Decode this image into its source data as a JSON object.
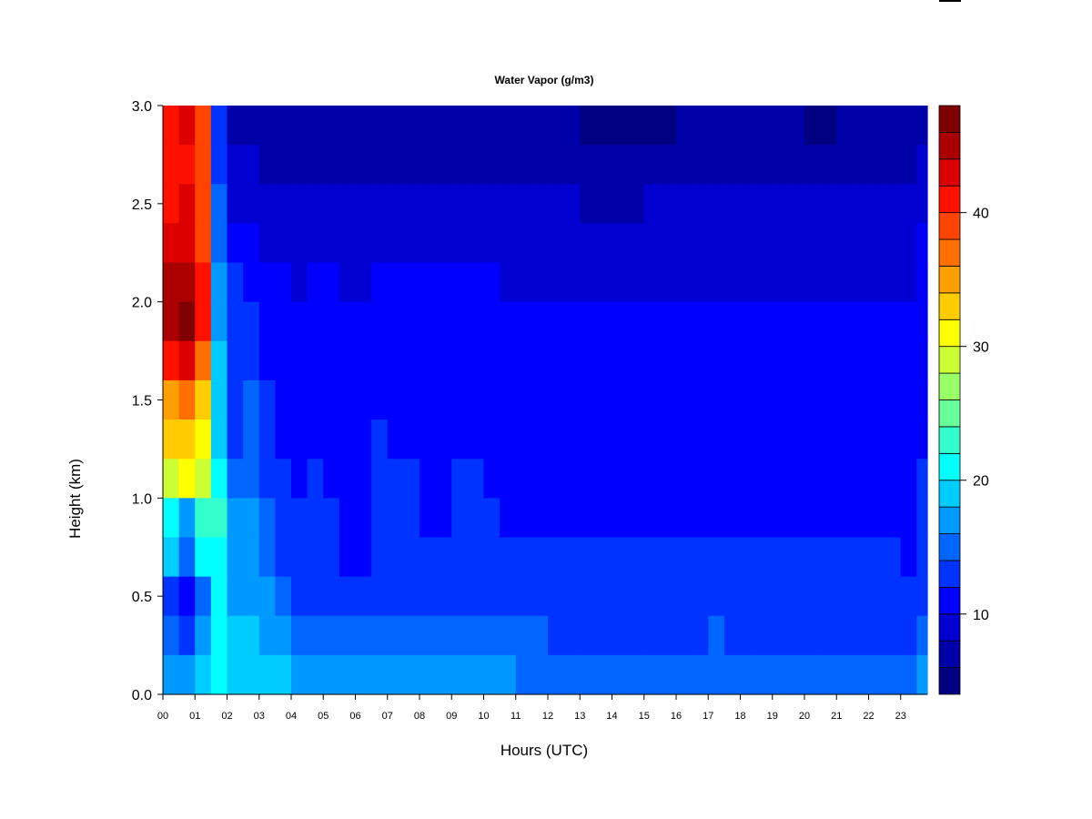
{
  "chart_data": {
    "type": "heatmap",
    "title": "Water Vapor (g/m3)",
    "xlabel": "Hours (UTC)",
    "ylabel": "Height (km)",
    "xlim": [
      0,
      23.83
    ],
    "ylim": [
      0,
      3.0
    ],
    "x_ticks": [
      "00",
      "01",
      "02",
      "03",
      "04",
      "05",
      "06",
      "07",
      "08",
      "09",
      "10",
      "11",
      "12",
      "13",
      "14",
      "15",
      "16",
      "17",
      "18",
      "19",
      "20",
      "21",
      "22",
      "23"
    ],
    "y_ticks": [
      "0.0",
      "0.5",
      "1.0",
      "1.5",
      "2.0",
      "2.5",
      "3.0"
    ],
    "x": [
      0.25,
      0.75,
      1.25,
      1.75,
      2.25,
      2.75,
      3.25,
      3.75,
      4.25,
      4.75,
      5.25,
      5.75,
      6.25,
      6.75,
      7.25,
      7.75,
      8.25,
      8.75,
      9.25,
      9.75,
      10.25,
      10.75,
      11.25,
      11.75,
      12.25,
      12.75,
      13.25,
      13.75,
      14.25,
      14.75,
      15.25,
      15.75,
      16.25,
      16.75,
      17.25,
      17.75,
      18.25,
      18.75,
      19.25,
      19.75,
      20.25,
      20.75,
      21.25,
      21.75,
      22.25,
      22.75,
      23.25,
      23.75
    ],
    "y": [
      2.9,
      2.7,
      2.5,
      2.3,
      2.1,
      1.9,
      1.7,
      1.5,
      1.3,
      1.1,
      0.9,
      0.7,
      0.5,
      0.3,
      0.1
    ],
    "z": [
      [
        40,
        42,
        38,
        12,
        7,
        7,
        7,
        6,
        6,
        6,
        6,
        6,
        6,
        6,
        6,
        6,
        6,
        6,
        6,
        6,
        6,
        6,
        6,
        6,
        6,
        6,
        5,
        5,
        5,
        5,
        5,
        5,
        6,
        6,
        6,
        6,
        6,
        6,
        6,
        6,
        5,
        5,
        6,
        6,
        6,
        6,
        6,
        6
      ],
      [
        40,
        41,
        38,
        13,
        8,
        8,
        7,
        7,
        7,
        7,
        7,
        7,
        7,
        7,
        7,
        7,
        7,
        7,
        7,
        7,
        7,
        7,
        7,
        7,
        7,
        7,
        6,
        6,
        6,
        6,
        6,
        6,
        7,
        7,
        7,
        7,
        7,
        7,
        7,
        7,
        7,
        7,
        7,
        7,
        7,
        7,
        7,
        8
      ],
      [
        41,
        42,
        38,
        14,
        9,
        8,
        8,
        8,
        8,
        8,
        8,
        8,
        8,
        8,
        8,
        8,
        8,
        8,
        8,
        8,
        8,
        8,
        8,
        8,
        8,
        8,
        7,
        7,
        7,
        7,
        8,
        8,
        8,
        8,
        8,
        8,
        8,
        8,
        8,
        8,
        8,
        8,
        8,
        8,
        8,
        8,
        8,
        9
      ],
      [
        42,
        43,
        39,
        15,
        11,
        10,
        9,
        9,
        9,
        9,
        9,
        9,
        9,
        9,
        9,
        9,
        9,
        9,
        9,
        9,
        9,
        9,
        9,
        9,
        9,
        9,
        9,
        9,
        9,
        9,
        9,
        9,
        9,
        9,
        9,
        9,
        9,
        9,
        9,
        9,
        9,
        9,
        9,
        9,
        9,
        9,
        9,
        10
      ],
      [
        44,
        45,
        40,
        16,
        12,
        11,
        10,
        10,
        9,
        10,
        10,
        9,
        9,
        10,
        10,
        10,
        10,
        10,
        10,
        10,
        10,
        9,
        9,
        9,
        9,
        9,
        9,
        9,
        9,
        9,
        9,
        9,
        9,
        9,
        9,
        9,
        9,
        9,
        9,
        9,
        9,
        9,
        9,
        9,
        9,
        9,
        9,
        10
      ],
      [
        45,
        46,
        40,
        17,
        12,
        12,
        10,
        10,
        10,
        10,
        10,
        10,
        10,
        10,
        10,
        10,
        10,
        10,
        10,
        10,
        10,
        10,
        10,
        10,
        10,
        10,
        10,
        10,
        10,
        10,
        10,
        10,
        10,
        10,
        10,
        10,
        10,
        10,
        10,
        10,
        10,
        10,
        10,
        10,
        10,
        10,
        10,
        11
      ],
      [
        40,
        42,
        36,
        18,
        13,
        13,
        11,
        10,
        10,
        10,
        10,
        10,
        10,
        11,
        11,
        10,
        10,
        10,
        10,
        10,
        10,
        10,
        10,
        10,
        10,
        10,
        10,
        10,
        10,
        10,
        10,
        10,
        10,
        10,
        10,
        10,
        10,
        11,
        11,
        11,
        11,
        11,
        11,
        10,
        11,
        11,
        10,
        11
      ],
      [
        34,
        36,
        32,
        18,
        13,
        14,
        12,
        11,
        11,
        11,
        11,
        10,
        11,
        11,
        11,
        11,
        11,
        11,
        11,
        11,
        11,
        10,
        10,
        10,
        10,
        10,
        10,
        10,
        10,
        10,
        10,
        10,
        10,
        10,
        10,
        10,
        10,
        11,
        11,
        11,
        11,
        11,
        11,
        10,
        11,
        11,
        10,
        11
      ],
      [
        32,
        33,
        30,
        19,
        13,
        14,
        12,
        11,
        11,
        11,
        11,
        10,
        11,
        12,
        11,
        11,
        11,
        11,
        11,
        11,
        11,
        10,
        10,
        10,
        10,
        10,
        10,
        10,
        10,
        10,
        10,
        10,
        10,
        10,
        10,
        10,
        10,
        11,
        11,
        11,
        11,
        11,
        11,
        11,
        11,
        11,
        10,
        11
      ],
      [
        28,
        30,
        29,
        20,
        14,
        15,
        13,
        12,
        11,
        12,
        11,
        11,
        11,
        12,
        12,
        12,
        11,
        11,
        12,
        12,
        11,
        11,
        11,
        11,
        11,
        11,
        11,
        11,
        11,
        11,
        11,
        11,
        11,
        11,
        11,
        11,
        11,
        11,
        11,
        11,
        11,
        11,
        11,
        11,
        11,
        11,
        11,
        12
      ],
      [
        20,
        17,
        22,
        22,
        16,
        16,
        14,
        13,
        12,
        13,
        12,
        11,
        11,
        12,
        12,
        12,
        11,
        11,
        12,
        12,
        12,
        11,
        11,
        11,
        11,
        11,
        11,
        11,
        11,
        11,
        11,
        11,
        11,
        11,
        11,
        11,
        11,
        11,
        11,
        11,
        11,
        11,
        11,
        11,
        11,
        11,
        11,
        12
      ],
      [
        18,
        14,
        20,
        21,
        17,
        16,
        15,
        13,
        12,
        13,
        12,
        11,
        11,
        12,
        12,
        12,
        12,
        12,
        12,
        12,
        12,
        12,
        12,
        12,
        12,
        12,
        12,
        12,
        12,
        12,
        12,
        12,
        12,
        12,
        12,
        12,
        12,
        12,
        12,
        12,
        12,
        12,
        12,
        12,
        12,
        12,
        11,
        12
      ],
      [
        12,
        10,
        14,
        20,
        17,
        17,
        16,
        14,
        13,
        13,
        12,
        12,
        12,
        13,
        13,
        13,
        12,
        12,
        12,
        12,
        12,
        12,
        12,
        12,
        12,
        12,
        12,
        12,
        12,
        12,
        12,
        12,
        12,
        12,
        12,
        12,
        12,
        12,
        12,
        12,
        12,
        12,
        12,
        12,
        12,
        12,
        12,
        13
      ],
      [
        14,
        13,
        16,
        20,
        18,
        18,
        17,
        16,
        14,
        14,
        14,
        14,
        14,
        15,
        14,
        14,
        14,
        14,
        14,
        14,
        14,
        14,
        14,
        14,
        13,
        13,
        13,
        13,
        13,
        13,
        13,
        13,
        13,
        13,
        14,
        12,
        12,
        12,
        12,
        12,
        12,
        12,
        12,
        12,
        12,
        12,
        13,
        14
      ],
      [
        17,
        16,
        18,
        20,
        18,
        18,
        18,
        18,
        16,
        16,
        16,
        16,
        16,
        16,
        16,
        16,
        16,
        16,
        16,
        16,
        16,
        16,
        15,
        15,
        15,
        15,
        15,
        15,
        15,
        15,
        15,
        15,
        15,
        15,
        15,
        14,
        14,
        14,
        14,
        14,
        14,
        14,
        14,
        14,
        14,
        14,
        15,
        16
      ]
    ],
    "colorbar": {
      "levels": [
        4,
        6,
        8,
        10,
        12,
        14,
        16,
        18,
        20,
        22,
        24,
        26,
        28,
        30,
        32,
        34,
        36,
        38,
        40,
        42,
        44,
        46,
        48
      ],
      "tick_labels": [
        "10",
        "20",
        "30",
        "40"
      ],
      "colors": [
        "#000080",
        "#0000A8",
        "#0000D0",
        "#0000FF",
        "#0033FF",
        "#0066FF",
        "#0099FF",
        "#00CCFF",
        "#00FFFF",
        "#33FFCC",
        "#66FF99",
        "#99FF66",
        "#CCFF33",
        "#FFFF00",
        "#FFCC00",
        "#FFA000",
        "#FF7000",
        "#FF4400",
        "#FF1100",
        "#DD0000",
        "#AA0000",
        "#7F0000"
      ]
    },
    "grid": false,
    "legend": "right colorbar"
  }
}
